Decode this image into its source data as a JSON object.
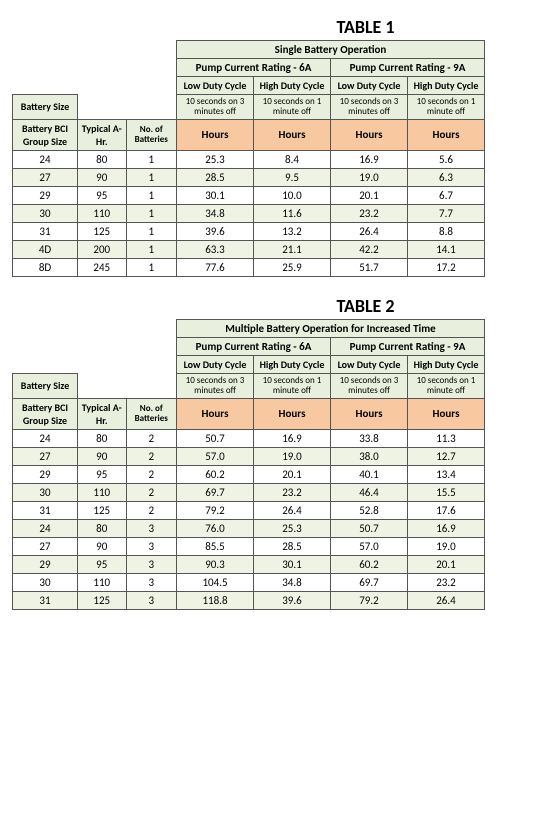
{
  "table1": {
    "title": "TABLE 1",
    "main_header": "Single Battery Operation",
    "pump_6a": "Pump Current  Rating - 6A",
    "pump_9a": "Pump Current  Rating - 9A",
    "low_duty": "Low Duty Cycle",
    "high_duty": "High Duty Cycle",
    "duty_low_desc": "10 seconds on 3 minutes off",
    "duty_high_desc": "10 seconds on 1 minute off",
    "battery_size": "Battery Size",
    "bci": "Battery BCI Group Size",
    "typical": "Typical A-Hr.",
    "num_batt": "No. of Batteries",
    "hours": "Hours",
    "rows": [
      {
        "g": "24",
        "ah": "80",
        "n": "1",
        "a": "25.3",
        "b": "8.4",
        "c": "16.9",
        "d": "5.6"
      },
      {
        "g": "27",
        "ah": "90",
        "n": "1",
        "a": "28.5",
        "b": "9.5",
        "c": "19.0",
        "d": "6.3"
      },
      {
        "g": "29",
        "ah": "95",
        "n": "1",
        "a": "30.1",
        "b": "10.0",
        "c": "20.1",
        "d": "6.7"
      },
      {
        "g": "30",
        "ah": "110",
        "n": "1",
        "a": "34.8",
        "b": "11.6",
        "c": "23.2",
        "d": "7.7"
      },
      {
        "g": "31",
        "ah": "125",
        "n": "1",
        "a": "39.6",
        "b": "13.2",
        "c": "26.4",
        "d": "8.8"
      },
      {
        "g": "4D",
        "ah": "200",
        "n": "1",
        "a": "63.3",
        "b": "21.1",
        "c": "42.2",
        "d": "14.1"
      },
      {
        "g": "8D",
        "ah": "245",
        "n": "1",
        "a": "77.6",
        "b": "25.9",
        "c": "51.7",
        "d": "17.2"
      }
    ]
  },
  "table2": {
    "title": "TABLE 2",
    "main_header": "Multiple Battery Operation for Increased Time",
    "pump_6a": "Pump Current  Rating - 6A",
    "pump_9a": "Pump Current  Rating - 9A",
    "low_duty": "Low Duty Cycle",
    "high_duty": "High Duty Cycle",
    "duty_low_desc": "10 seconds on 3 minutes off",
    "duty_high_desc": "10 seconds on 1 minute off",
    "battery_size": "Battery Size",
    "bci": "Battery BCI Group Size",
    "typical": "Typical A-Hr.",
    "num_batt": "No. of Batteries",
    "hours": "Hours",
    "rows": [
      {
        "g": "24",
        "ah": "80",
        "n": "2",
        "a": "50.7",
        "b": "16.9",
        "c": "33.8",
        "d": "11.3"
      },
      {
        "g": "27",
        "ah": "90",
        "n": "2",
        "a": "57.0",
        "b": "19.0",
        "c": "38.0",
        "d": "12.7"
      },
      {
        "g": "29",
        "ah": "95",
        "n": "2",
        "a": "60.2",
        "b": "20.1",
        "c": "40.1",
        "d": "13.4"
      },
      {
        "g": "30",
        "ah": "110",
        "n": "2",
        "a": "69.7",
        "b": "23.2",
        "c": "46.4",
        "d": "15.5"
      },
      {
        "g": "31",
        "ah": "125",
        "n": "2",
        "a": "79.2",
        "b": "26.4",
        "c": "52.8",
        "d": "17.6"
      },
      {
        "g": "24",
        "ah": "80",
        "n": "3",
        "a": "76.0",
        "b": "25.3",
        "c": "50.7",
        "d": "16.9"
      },
      {
        "g": "27",
        "ah": "90",
        "n": "3",
        "a": "85.5",
        "b": "28.5",
        "c": "57.0",
        "d": "19.0"
      },
      {
        "g": "29",
        "ah": "95",
        "n": "3",
        "a": "90.3",
        "b": "30.1",
        "c": "60.2",
        "d": "20.1"
      },
      {
        "g": "30",
        "ah": "110",
        "n": "3",
        "a": "104.5",
        "b": "34.8",
        "c": "69.7",
        "d": "23.2"
      },
      {
        "g": "31",
        "ah": "125",
        "n": "3",
        "a": "118.8",
        "b": "39.6",
        "c": "79.2",
        "d": "26.4"
      }
    ]
  },
  "style": {
    "header_green": "#e8efdc",
    "header_orange": "#f8c9a1",
    "row_alt": "#eef3e4",
    "border": "#555555"
  }
}
